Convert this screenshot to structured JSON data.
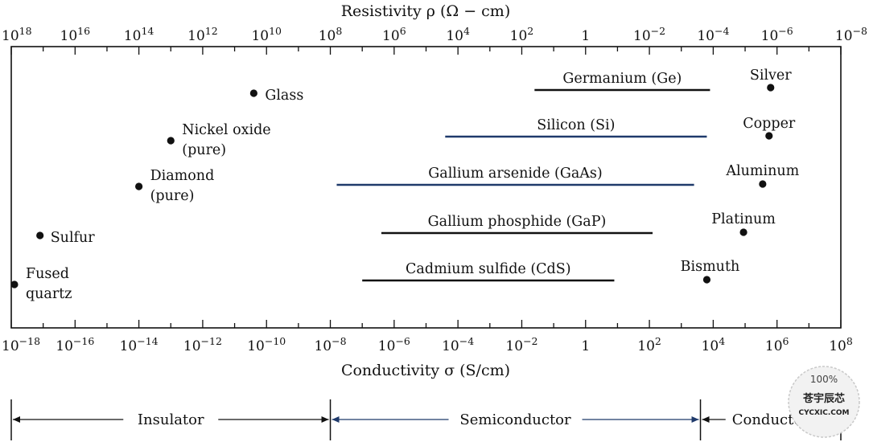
{
  "chart_data": {
    "type": "range",
    "top_axis": {
      "title": "Resistivity ρ (Ω − cm)",
      "ticks": [
        {
          "base": "10",
          "exp": "18"
        },
        {
          "base": "10",
          "exp": "16"
        },
        {
          "base": "10",
          "exp": "14"
        },
        {
          "base": "10",
          "exp": "12"
        },
        {
          "base": "10",
          "exp": "10"
        },
        {
          "base": "10",
          "exp": "8"
        },
        {
          "base": "10",
          "exp": "6"
        },
        {
          "base": "10",
          "exp": "4"
        },
        {
          "base": "10",
          "exp": "2"
        },
        {
          "base": "1",
          "exp": ""
        },
        {
          "base": "10",
          "exp": "−2"
        },
        {
          "base": "10",
          "exp": "−4"
        },
        {
          "base": "10",
          "exp": "−6"
        },
        {
          "base": "10",
          "exp": "−8"
        }
      ]
    },
    "bottom_axis": {
      "title": "Conductivity σ (S/cm)",
      "scale": "log10",
      "range": [
        -18,
        8
      ],
      "ticks": [
        {
          "base": "10",
          "exp": "−18"
        },
        {
          "base": "10",
          "exp": "−16"
        },
        {
          "base": "10",
          "exp": "−14"
        },
        {
          "base": "10",
          "exp": "−12"
        },
        {
          "base": "10",
          "exp": "−10"
        },
        {
          "base": "10",
          "exp": "−8"
        },
        {
          "base": "10",
          "exp": "−6"
        },
        {
          "base": "10",
          "exp": "−4"
        },
        {
          "base": "10",
          "exp": "−2"
        },
        {
          "base": "1",
          "exp": ""
        },
        {
          "base": "10",
          "exp": "2"
        },
        {
          "base": "10",
          "exp": "4"
        },
        {
          "base": "10",
          "exp": "6"
        },
        {
          "base": "10",
          "exp": "8"
        }
      ]
    },
    "ranges": [
      {
        "name": "Germanium (Ge)",
        "log_sigma": [
          -1.6,
          3.9
        ],
        "color": "#111111"
      },
      {
        "name": "Silicon (Si)",
        "log_sigma": [
          -4.4,
          3.8
        ],
        "color": "#1f3a6b"
      },
      {
        "name": "Gallium arsenide (GaAs)",
        "log_sigma": [
          -7.8,
          3.4
        ],
        "color": "#1f3a6b"
      },
      {
        "name": "Gallium phosphide (GaP)",
        "log_sigma": [
          -6.4,
          2.1
        ],
        "color": "#111111"
      },
      {
        "name": "Cadmium sulfide (CdS)",
        "log_sigma": [
          -7.0,
          0.9
        ],
        "color": "#111111"
      }
    ],
    "points": [
      {
        "lines": [
          "Glass"
        ],
        "log_sigma": -10.4
      },
      {
        "lines": [
          "Nickel oxide",
          "(pure)"
        ],
        "log_sigma": -13.0
      },
      {
        "lines": [
          "Diamond",
          "(pure)"
        ],
        "log_sigma": -14.0
      },
      {
        "lines": [
          "Sulfur"
        ],
        "log_sigma": -17.1
      },
      {
        "lines": [
          "Fused",
          "quartz"
        ],
        "log_sigma": -17.9
      },
      {
        "lines": [
          "Silver"
        ],
        "log_sigma": 5.8
      },
      {
        "lines": [
          "Copper"
        ],
        "log_sigma": 5.75
      },
      {
        "lines": [
          "Aluminum"
        ],
        "log_sigma": 5.55
      },
      {
        "lines": [
          "Platinum"
        ],
        "log_sigma": 4.95
      },
      {
        "lines": [
          "Bismuth"
        ],
        "log_sigma": 3.8
      }
    ],
    "regions": [
      {
        "name": "Insulator",
        "log_sigma": [
          -18,
          -8
        ],
        "color": "#111111"
      },
      {
        "name": "Semiconductor",
        "log_sigma": [
          -8,
          3.6
        ],
        "color": "#1f3a6b"
      },
      {
        "name": "Conductor",
        "log_sigma": [
          3.6,
          8
        ],
        "color": "#111111"
      }
    ]
  },
  "watermark": {
    "top": "100%",
    "middle": "苍宇辰芯",
    "bottom": "CYCXIC.COM"
  }
}
